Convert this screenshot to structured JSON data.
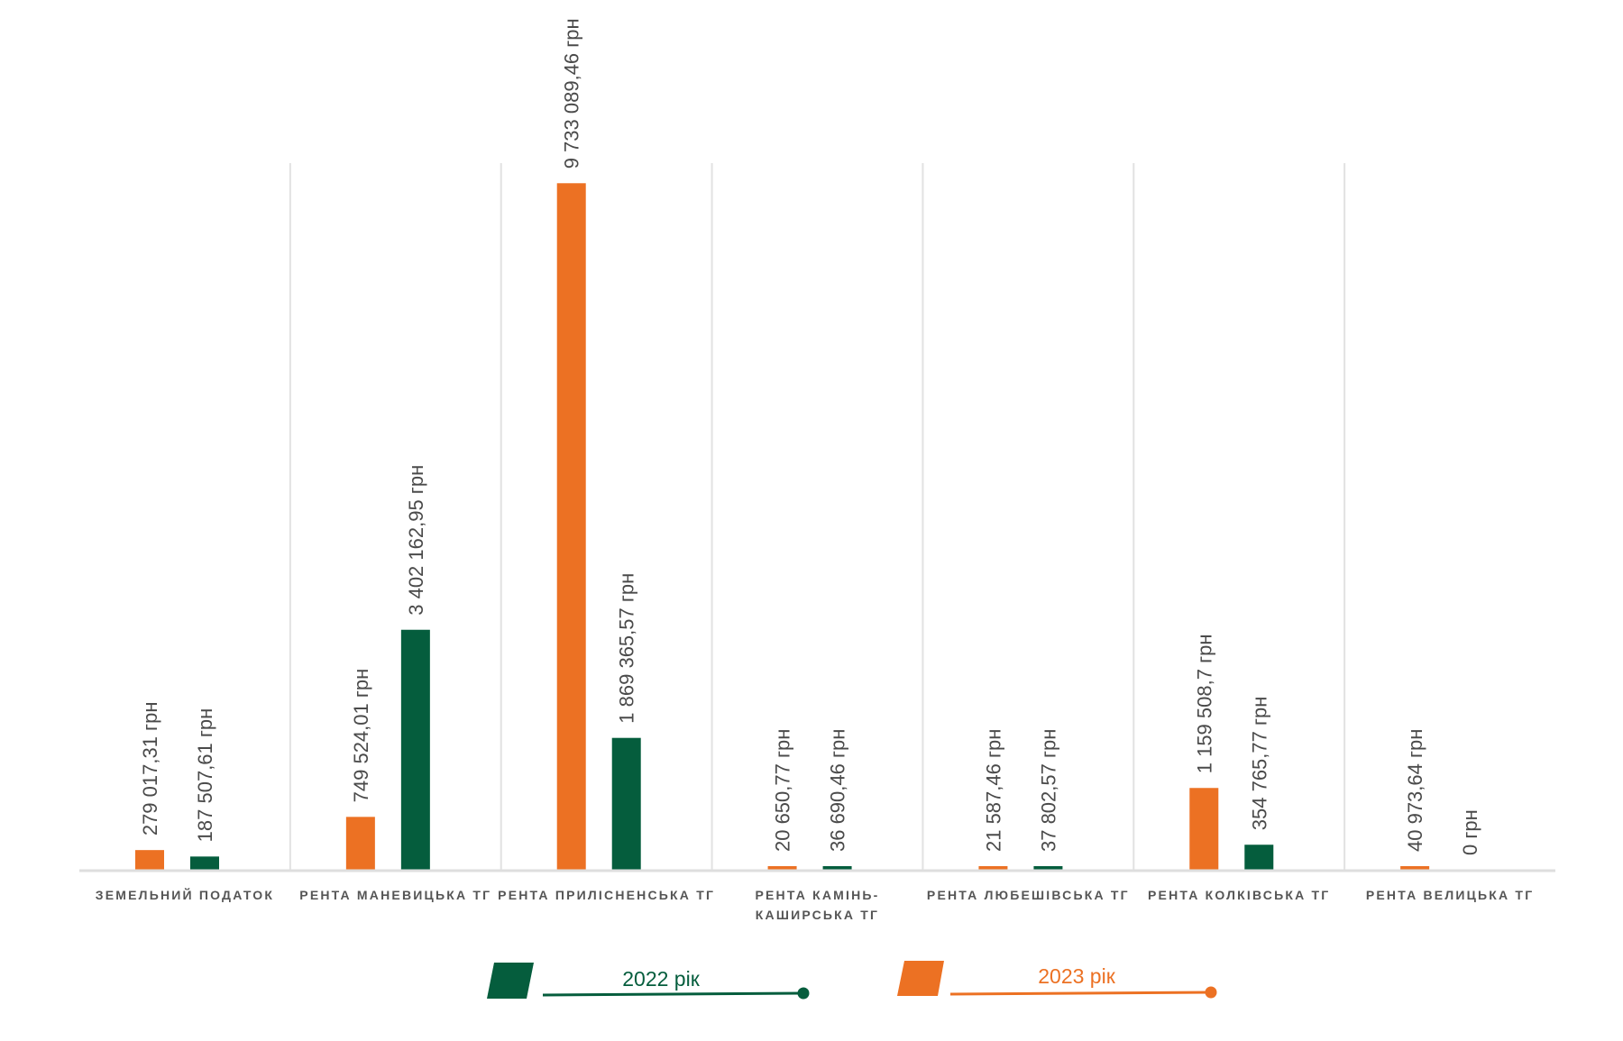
{
  "chart_data": {
    "type": "bar",
    "categories": [
      [
        "ЗЕМЕЛЬНИЙ ПОДАТОК"
      ],
      [
        "РЕНТА МАНЕВИЦЬКА ТГ"
      ],
      [
        "РЕНТА ПРИЛІСНЕНСЬКА ТГ"
      ],
      [
        "РЕНТА КАМІНЬ-",
        "КАШИРСЬКА ТГ"
      ],
      [
        "РЕНТА ЛЮБЕШІВСЬКА ТГ"
      ],
      [
        "РЕНТА КОЛКІВСЬКА ТГ"
      ],
      [
        "РЕНТА ВЕЛИЦЬКА ТГ"
      ]
    ],
    "series": [
      {
        "name": "2023 рік",
        "color": "#EC7123",
        "values": [
          279017.31,
          749524.01,
          9733089.46,
          20650.77,
          21587.46,
          1159508.7,
          40973.64
        ],
        "labels": [
          "279 017,31 грн",
          "749 524,01 грн",
          "9 733 089,46 грн",
          "20 650,77 грн",
          "21 587,46 грн",
          "1 159 508,7 грн",
          "40 973,64 грн"
        ]
      },
      {
        "name": "2022 рік",
        "color": "#055D3D",
        "values": [
          187507.61,
          3402162.95,
          1869365.57,
          36690.46,
          37802.57,
          354765.77,
          0
        ],
        "labels": [
          "187 507,61 грн",
          "3 402 162,95 грн",
          "1 869 365,57 грн",
          "36 690,46 грн",
          "37 802,57 грн",
          "354 765,77 грн",
          "0 грн"
        ]
      }
    ],
    "title": "",
    "xlabel": "",
    "ylabel": "",
    "ylim": [
      0,
      11500000
    ],
    "grid": "vertical separators",
    "legend_placement": "bottom-center",
    "legend": [
      "2022 рік",
      "2023 рік"
    ]
  }
}
